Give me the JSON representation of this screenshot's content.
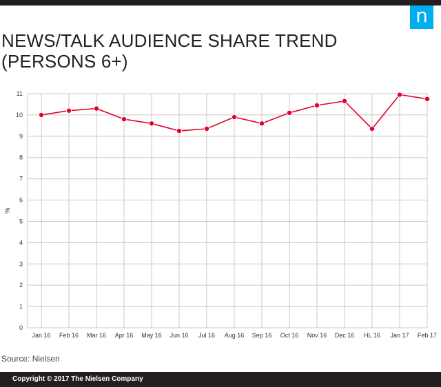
{
  "header": {
    "logo_glyph": "n",
    "title": "NEWS/TALK AUDIENCE SHARE TREND (PERSONS 6+)"
  },
  "chart_data": {
    "type": "line",
    "title": "NEWS/TALK AUDIENCE SHARE TREND (PERSONS 6+)",
    "xlabel": "",
    "ylabel": "%",
    "categories": [
      "Jan 16",
      "Feb 16",
      "Mar 16",
      "Apr 16",
      "May 16",
      "Jun 16",
      "Jul 16",
      "Aug 16",
      "Sep 16",
      "Oct 16",
      "Nov 16",
      "Dec 16",
      "HL 16",
      "Jan 17",
      "Feb 17"
    ],
    "series": [
      {
        "values": [
          10.0,
          10.2,
          10.3,
          9.8,
          9.6,
          9.25,
          9.35,
          9.9,
          9.6,
          10.1,
          10.45,
          10.65,
          9.35,
          10.95,
          10.75
        ]
      }
    ],
    "yticks": [
      "0",
      "1",
      "2",
      "3",
      "4",
      "5",
      "6",
      "7",
      "8",
      "9",
      "10",
      "11"
    ],
    "ylim": [
      0,
      11
    ],
    "grid": true,
    "line_color": "#e4002b"
  },
  "footer": {
    "source": "Source: Nielsen",
    "copyright": "Copyright © 2017 The Nielsen Company"
  }
}
